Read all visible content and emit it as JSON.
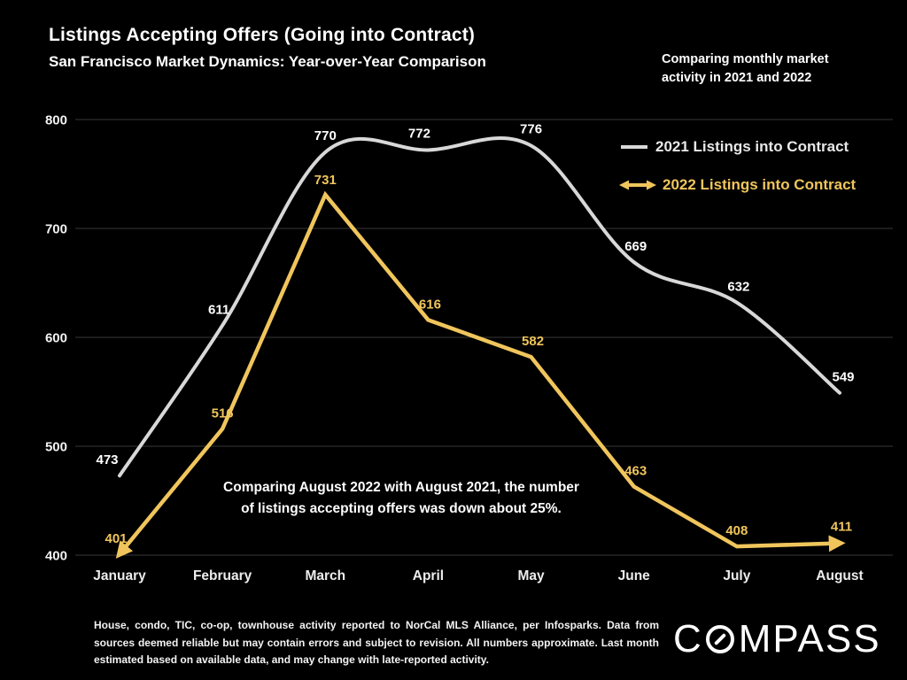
{
  "slide": {
    "title": "Listings Accepting Offers (Going into Contract)",
    "subtitle": "San Francisco Market Dynamics: Year-over-Year Comparison",
    "note": "Comparing monthly market activity in 2021 and 2022",
    "annotation": {
      "line1": "Comparing August 2022 with August 2021, the number",
      "line2": "of listings accepting offers was down about 25%."
    },
    "footer": "House, condo, TIC, co-op, townhouse activity reported to NorCal MLS Alliance, per Infosparks. Data from sources deemed reliable but may contain errors and subject to revision. All numbers approximate. Last month estimated based on available data, and may change with late-reported activity.",
    "brand": "COMPASS",
    "brand_prefix": "C",
    "brand_suffix": "MPASS"
  },
  "colors": {
    "background": "#000000",
    "line_2021": "#d8d8d8",
    "line_2022": "#f0c55c",
    "gridline": "#383838",
    "tick_text": "#f2f2f2",
    "month_text": "#ededed",
    "label_2021": "#ffffff",
    "label_2022": "#f0c55c"
  },
  "chart_data": {
    "type": "line",
    "title": "Listings Accepting Offers (Going into Contract)",
    "categories": [
      "January",
      "February",
      "March",
      "April",
      "May",
      "June",
      "July",
      "August"
    ],
    "series": [
      {
        "name": "2021 Listings into Contract",
        "color": "#d8d8d8",
        "style": "smooth",
        "values": [
          473,
          611,
          770,
          772,
          776,
          669,
          632,
          549
        ]
      },
      {
        "name": "2022 Listings into Contract",
        "color": "#f0c55c",
        "style": "straight-double-arrow",
        "values": [
          401,
          516,
          731,
          616,
          582,
          463,
          408,
          411
        ]
      }
    ],
    "ylim": [
      400,
      800
    ],
    "yticks": [
      400,
      500,
      600,
      700,
      800
    ],
    "grid": "horizontal",
    "legend_position": "top-right-inside",
    "xlabel": "",
    "ylabel": ""
  }
}
